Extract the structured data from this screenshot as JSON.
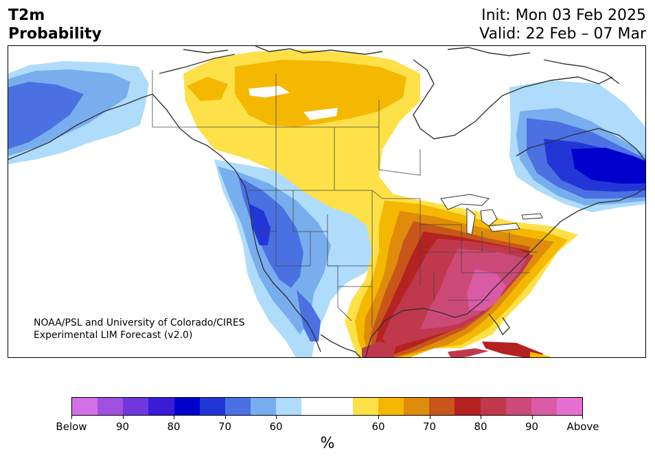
{
  "header": {
    "title_line1": "T2m",
    "title_line2": "Probability",
    "init": "Init: Mon 03 Feb 2025",
    "valid": "Valid: 22 Feb – 07 Mar"
  },
  "credit": {
    "line1": "NOAA/PSL and University of Colorado/CIRES",
    "line2": "Experimental LIM Forecast (v2.0)"
  },
  "colorbar": {
    "colors": [
      "#d470e6",
      "#a050dc",
      "#7038dc",
      "#3a1cd8",
      "#0000cc",
      "#2236d8",
      "#4a70e2",
      "#78aeee",
      "#aedcfa",
      "#ffffff",
      "#ffffff",
      "#fee048",
      "#f4b800",
      "#de8c0a",
      "#c8561a",
      "#b42222",
      "#c0384c",
      "#cc4a78",
      "#da5aa6",
      "#e670d2"
    ],
    "labels": [
      "Below",
      "90",
      "80",
      "70",
      "60",
      "60",
      "70",
      "80",
      "90",
      "Above"
    ],
    "unit": "%"
  },
  "map": {
    "colors": {
      "below_60": "#aedcfa",
      "below_70": "#78aeee",
      "below_75": "#4a70e2",
      "below_80": "#2236d8",
      "below_85": "#0000cc",
      "above_60": "#fee048",
      "above_65": "#f4b800",
      "above_70": "#de8c0a",
      "above_75": "#c8561a",
      "above_80": "#b42222",
      "above_85": "#c0384c",
      "above_90": "#cc4a78",
      "above_95": "#da5aa6",
      "land_outline": "#333333"
    }
  }
}
